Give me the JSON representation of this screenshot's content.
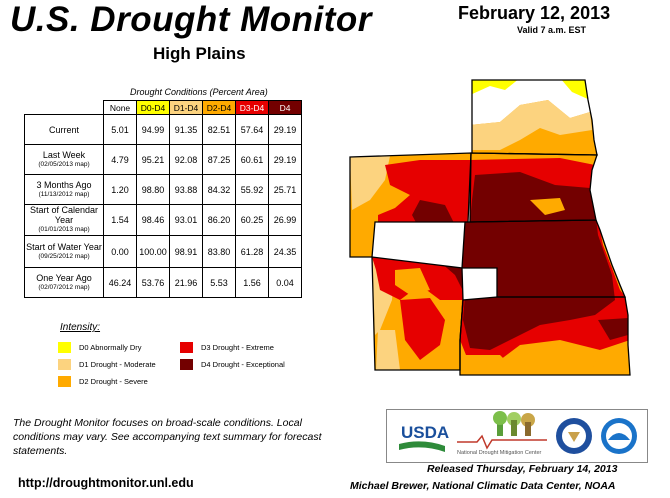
{
  "header": {
    "title": "U.S. Drought Monitor",
    "region": "High Plains",
    "date": "February 12, 2013",
    "valid": "Valid 7 a.m. EST"
  },
  "table": {
    "caption": "Drought Conditions (Percent Area)",
    "columns": [
      "None",
      "D0-D4",
      "D1-D4",
      "D2-D4",
      "D3-D4",
      "D4"
    ],
    "column_colors": [
      "#ffffff",
      "#ffff00",
      "#fcd37f",
      "#ffaa00",
      "#e60000",
      "#730000"
    ],
    "rows": [
      {
        "label": "Current",
        "sub": "",
        "values": [
          "5.01",
          "94.99",
          "91.35",
          "82.51",
          "57.64",
          "29.19"
        ]
      },
      {
        "label": "Last Week",
        "sub": "(02/05/2013 map)",
        "values": [
          "4.79",
          "95.21",
          "92.08",
          "87.25",
          "60.61",
          "29.19"
        ]
      },
      {
        "label": "3 Months Ago",
        "sub": "(11/13/2012 map)",
        "values": [
          "1.20",
          "98.80",
          "93.88",
          "84.32",
          "55.92",
          "25.71"
        ]
      },
      {
        "label": "Start of Calendar Year",
        "sub": "(01/01/2013 map)",
        "values": [
          "1.54",
          "98.46",
          "93.01",
          "86.20",
          "60.25",
          "26.99"
        ]
      },
      {
        "label": "Start of Water Year",
        "sub": "(09/25/2012 map)",
        "values": [
          "0.00",
          "100.00",
          "98.91",
          "83.80",
          "61.28",
          "24.35"
        ]
      },
      {
        "label": "One Year Ago",
        "sub": "(02/07/2012 map)",
        "values": [
          "46.24",
          "53.76",
          "21.96",
          "5.53",
          "1.56",
          "0.04"
        ]
      }
    ]
  },
  "legend": {
    "title": "Intensity:",
    "items": [
      {
        "label": "D0 Abnormally Dry",
        "color": "#ffff00"
      },
      {
        "label": "D1 Drought - Moderate",
        "color": "#fcd37f"
      },
      {
        "label": "D2 Drought - Severe",
        "color": "#ffaa00"
      },
      {
        "label": "D3 Drought - Extreme",
        "color": "#e60000"
      },
      {
        "label": "D4 Drought - Exceptional",
        "color": "#730000"
      }
    ]
  },
  "footer": {
    "note": "The Drought Monitor focuses on broad-scale conditions. Local conditions may vary. See accompanying text summary for forecast statements.",
    "url": "http://droughtmonitor.unl.edu",
    "released": "Released Thursday, February 14, 2013",
    "author": "Michael Brewer, National Climatic Data Center, NOAA"
  },
  "logos": {
    "usda": "USDA",
    "ndmc": "National Drought Mitigation Center"
  }
}
